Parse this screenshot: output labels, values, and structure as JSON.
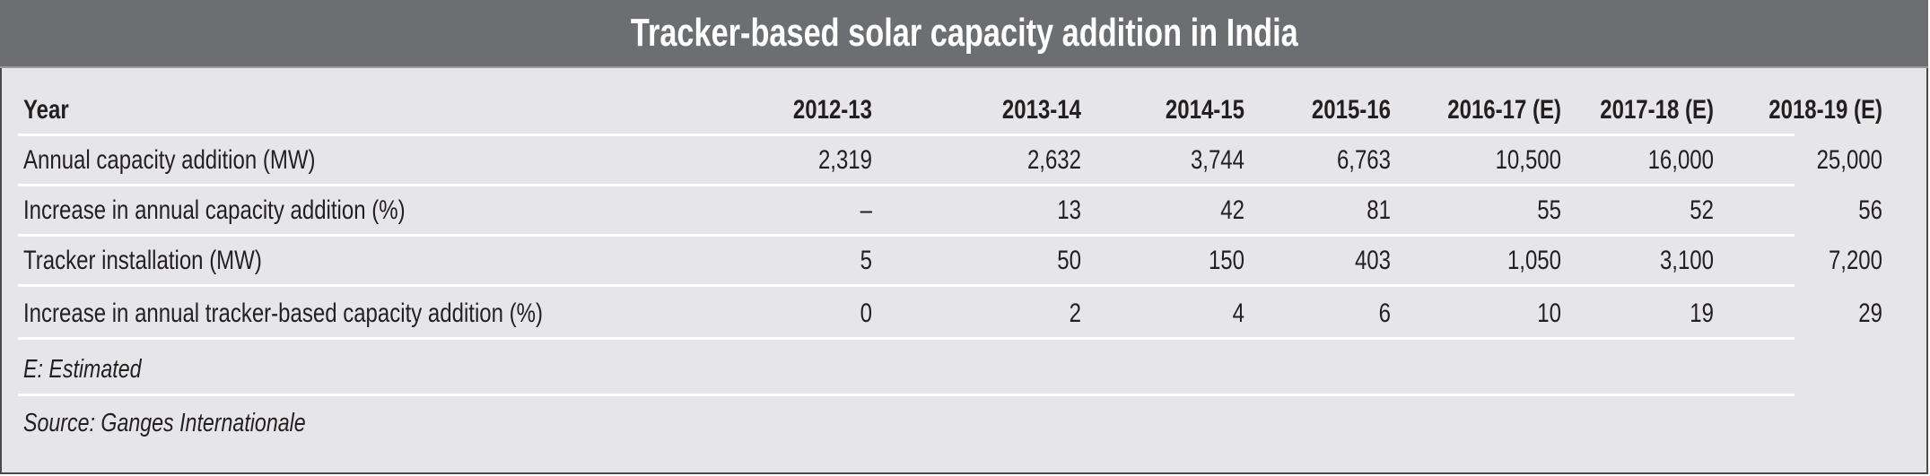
{
  "chart_data": {
    "type": "table",
    "title": "Tracker-based solar capacity addition in India",
    "header_label": "Year",
    "columns": [
      "2012-13",
      "2013-14",
      "2014-15",
      "2015-16",
      "2016-17 (E)",
      "2017-18 (E)",
      "2018-19 (E)"
    ],
    "rows": [
      {
        "label": "Annual capacity addition (MW)",
        "values": [
          "2,319",
          "2,632",
          "3,744",
          "6,763",
          "10,500",
          "16,000",
          "25,000"
        ]
      },
      {
        "label": "Increase in annual capacity addition (%)",
        "values": [
          "–",
          "13",
          "42",
          "81",
          "55",
          "52",
          "56"
        ]
      },
      {
        "label": "Tracker installation (MW)",
        "values": [
          "5",
          "50",
          "150",
          "403",
          "1,050",
          "3,100",
          "7,200"
        ]
      },
      {
        "label": "Increase in annual tracker-based capacity addition (%)",
        "values": [
          "0",
          "2",
          "4",
          "6",
          "10",
          "19",
          "29"
        ]
      }
    ],
    "notes": [
      "E: Estimated",
      "Source: Ganges Internationale"
    ]
  },
  "colors": {
    "title_bar": "#6d6e72",
    "body": "#e6e6e8",
    "text": "#231f20",
    "separator": "#ffffff"
  }
}
